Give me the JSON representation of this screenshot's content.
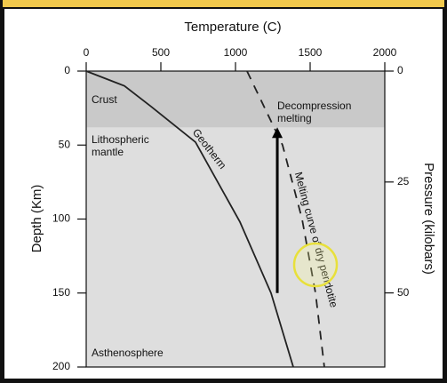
{
  "chart_data": {
    "type": "line",
    "title": "Temperature (C)",
    "y_label": "Depth (Km)",
    "y2_label": "Pressure (kilobars)",
    "xlim": [
      0,
      2000
    ],
    "xticks": [
      0,
      500,
      1000,
      1500,
      2000
    ],
    "ylim": [
      0,
      200
    ],
    "yticks": [
      0,
      50,
      100,
      150,
      200
    ],
    "y2lim": [
      0,
      66.7
    ],
    "y2ticks": [
      0,
      25,
      50
    ],
    "bands": [
      {
        "ylim": [
          0,
          38
        ],
        "color": "#c9c9c9"
      }
    ],
    "background": "#dedede",
    "series": [
      {
        "name": "Geotherm",
        "color": "#222222",
        "dashed": false,
        "x": [
          0,
          256,
          435,
          732,
          1030,
          1238,
          1387
        ],
        "values": [
          0,
          10,
          24,
          48,
          102,
          150,
          200
        ]
      },
      {
        "name": "Melting curve of dry peridotite",
        "color": "#222222",
        "dashed": true,
        "x": [
          1077,
          1315,
          1446,
          1536,
          1595
        ],
        "values": [
          0,
          50,
          100,
          150,
          200
        ]
      }
    ],
    "arrow": {
      "x": [
        1280,
        1280
      ],
      "values": [
        150,
        38
      ]
    },
    "annotations": [
      "Crust",
      "Lithospheric",
      "mantle",
      "Asthenosphere",
      "Decompression",
      "melting"
    ]
  }
}
